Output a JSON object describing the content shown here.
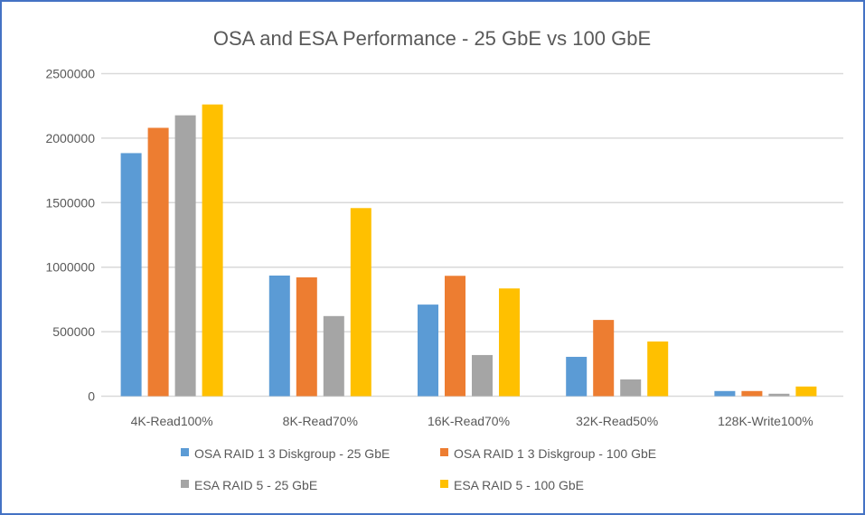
{
  "chart_data": {
    "type": "bar",
    "title": "OSA and ESA Performance - 25 GbE vs 100 GbE",
    "xlabel": "",
    "ylabel": "",
    "ylim": [
      0,
      2500000
    ],
    "yticks": [
      0,
      500000,
      1000000,
      1500000,
      2000000,
      2500000
    ],
    "ytick_labels": [
      "0",
      "500000",
      "1000000",
      "1500000",
      "2000000",
      "2500000"
    ],
    "grid": true,
    "legend_position": "bottom",
    "categories": [
      "4K-Read100%",
      "8K-Read70%",
      "16K-Read70%",
      "32K-Read50%",
      "128K-Write100%"
    ],
    "series": [
      {
        "name": "OSA RAID 1 3 Diskgroup - 25 GbE",
        "color": "#5b9bd5",
        "values": [
          1884000,
          935000,
          710000,
          305000,
          40000
        ]
      },
      {
        "name": "OSA RAID 1 3 Diskgroup - 100 GbE",
        "color": "#ed7d31",
        "values": [
          2080000,
          921000,
          933000,
          591000,
          40000
        ]
      },
      {
        "name": "ESA RAID 5 - 25 GbE",
        "color": "#a5a5a5",
        "values": [
          2177000,
          621000,
          319000,
          130000,
          19000
        ]
      },
      {
        "name": "ESA RAID 5 - 100 GbE",
        "color": "#ffc000",
        "values": [
          2261000,
          1458000,
          835000,
          424000,
          75000
        ]
      }
    ]
  },
  "colors": {
    "frame_border": "#4472c4",
    "gridline": "#d9d9d9",
    "text": "#595959"
  }
}
